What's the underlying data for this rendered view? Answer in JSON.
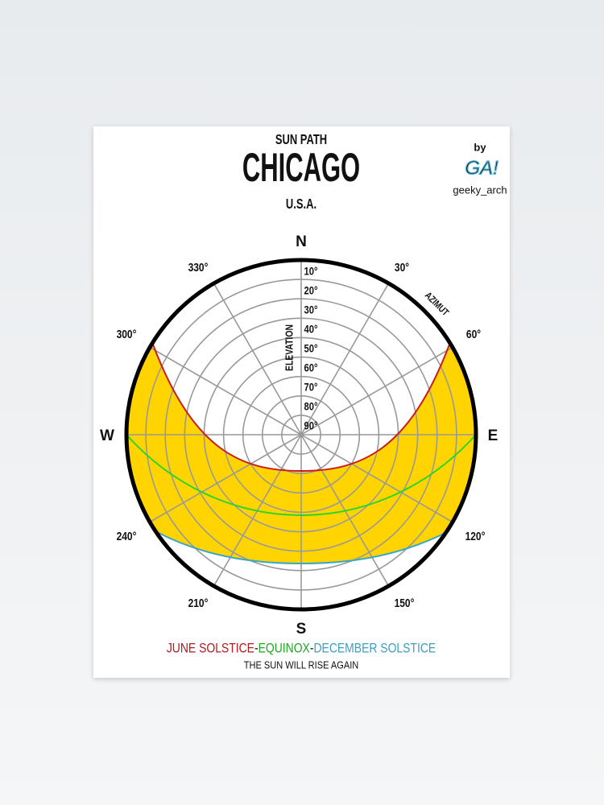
{
  "header": {
    "title": "SUN PATH",
    "city": "CHICAGO",
    "country": "U.S.A."
  },
  "credit": {
    "by": "by",
    "logo": "GA!",
    "handle": "geeky_arch"
  },
  "compass": {
    "north": "N",
    "east": "E",
    "south": "S",
    "west": "W"
  },
  "azimuth_title": "AZIMUT",
  "azimuth_labels": [
    "30°",
    "60°",
    "120°",
    "150°",
    "210°",
    "240°",
    "300°",
    "330°"
  ],
  "elevation_title": "ELEVATION",
  "elevation_labels": [
    "10°",
    "20°",
    "30°",
    "40°",
    "50°",
    "60°",
    "70°",
    "80°",
    "90°"
  ],
  "legend": [
    {
      "text": "JUNE SOLSTICE",
      "color": "#b01c1c"
    },
    {
      "text": "-",
      "color": "#111111"
    },
    {
      "text": "EQUINOX",
      "color": "#1ea81e"
    },
    {
      "text": "-",
      "color": "#111111"
    },
    {
      "text": "DECEMBER SOLSTICE",
      "color": "#3a9fc4"
    }
  ],
  "tagline": "THE SUN WILL RISE AGAIN"
}
